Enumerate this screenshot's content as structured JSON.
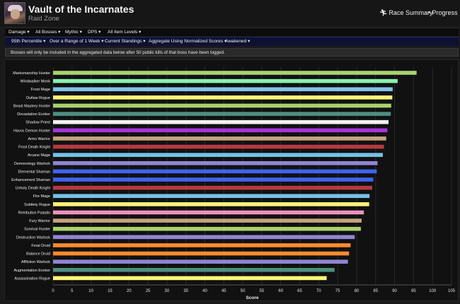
{
  "header": {
    "title": "Vault of the Incarnates",
    "subtitle": "Raid Zone",
    "race_summary": "Race Summary",
    "progress": "Progress"
  },
  "filters_primary": [
    "Damage ▾",
    "All Bosses ▾",
    "Mythic ▾",
    "DPS ▾",
    "All Item Levels ▾"
  ],
  "filters_secondary": [
    "95th Percentile ▾",
    "Over a Range of 1 Week ▾",
    "Current Standings ▾",
    "Aggregate Using Normalized Scores ▾",
    "Awakened ▾"
  ],
  "notice": "Bosses will only be included in the aggregated data below after 50 public kills of that boss have been logged.",
  "chart_data": {
    "type": "bar",
    "orientation": "horizontal",
    "xlabel": "Score",
    "xlim": [
      0,
      105
    ],
    "xticks": [
      0,
      5,
      10,
      15,
      20,
      25,
      30,
      35,
      40,
      45,
      50,
      55,
      60,
      65,
      70,
      75,
      80,
      85,
      90,
      95,
      100,
      105
    ],
    "grid": true,
    "categories": [
      "Marksmanship Hunter",
      "Windwalker Monk",
      "Frost Mage",
      "Outlaw Rogue",
      "Beast Mastery Hunter",
      "Devastation Evoker",
      "Shadow Priest",
      "Havoc Demon Hunter",
      "Arms Warrior",
      "Frost Death Knight",
      "Arcane Mage",
      "Demonology Warlock",
      "Elemental Shaman",
      "Enhancement Shaman",
      "Unholy Death Knight",
      "Fire Mage",
      "Subtlety Rogue",
      "Retribution Paladin",
      "Fury Warrior",
      "Survival Hunter",
      "Destruction Warlock",
      "Feral Druid",
      "Balance Druid",
      "Affliction Warlock",
      "Augmentation Evoker",
      "Assassination Rogue"
    ],
    "values": [
      95.8,
      90.8,
      89.5,
      89.4,
      89.1,
      89.0,
      88.4,
      88.1,
      87.8,
      87.2,
      86.9,
      85.5,
      85.3,
      84.4,
      84.1,
      83.4,
      83.3,
      81.9,
      81.3,
      81.1,
      79.5,
      78.4,
      78.0,
      77.7,
      74.2,
      72.1
    ],
    "colors": [
      "#a9d271",
      "#88f2b0",
      "#7fc5e6",
      "#fdf477",
      "#a9d271",
      "#4d8f80",
      "#f2f2f2",
      "#a535d8",
      "#c4a37c",
      "#b83a40",
      "#74c2e8",
      "#8f86d4",
      "#3f64f2",
      "#3f64f2",
      "#b83a40",
      "#74c2e8",
      "#fdf477",
      "#f090c0",
      "#c4a37c",
      "#a9d271",
      "#8f86d4",
      "#ff8b2e",
      "#ff8b2e",
      "#8f86d4",
      "#4d8f80",
      "#fdf477"
    ]
  }
}
